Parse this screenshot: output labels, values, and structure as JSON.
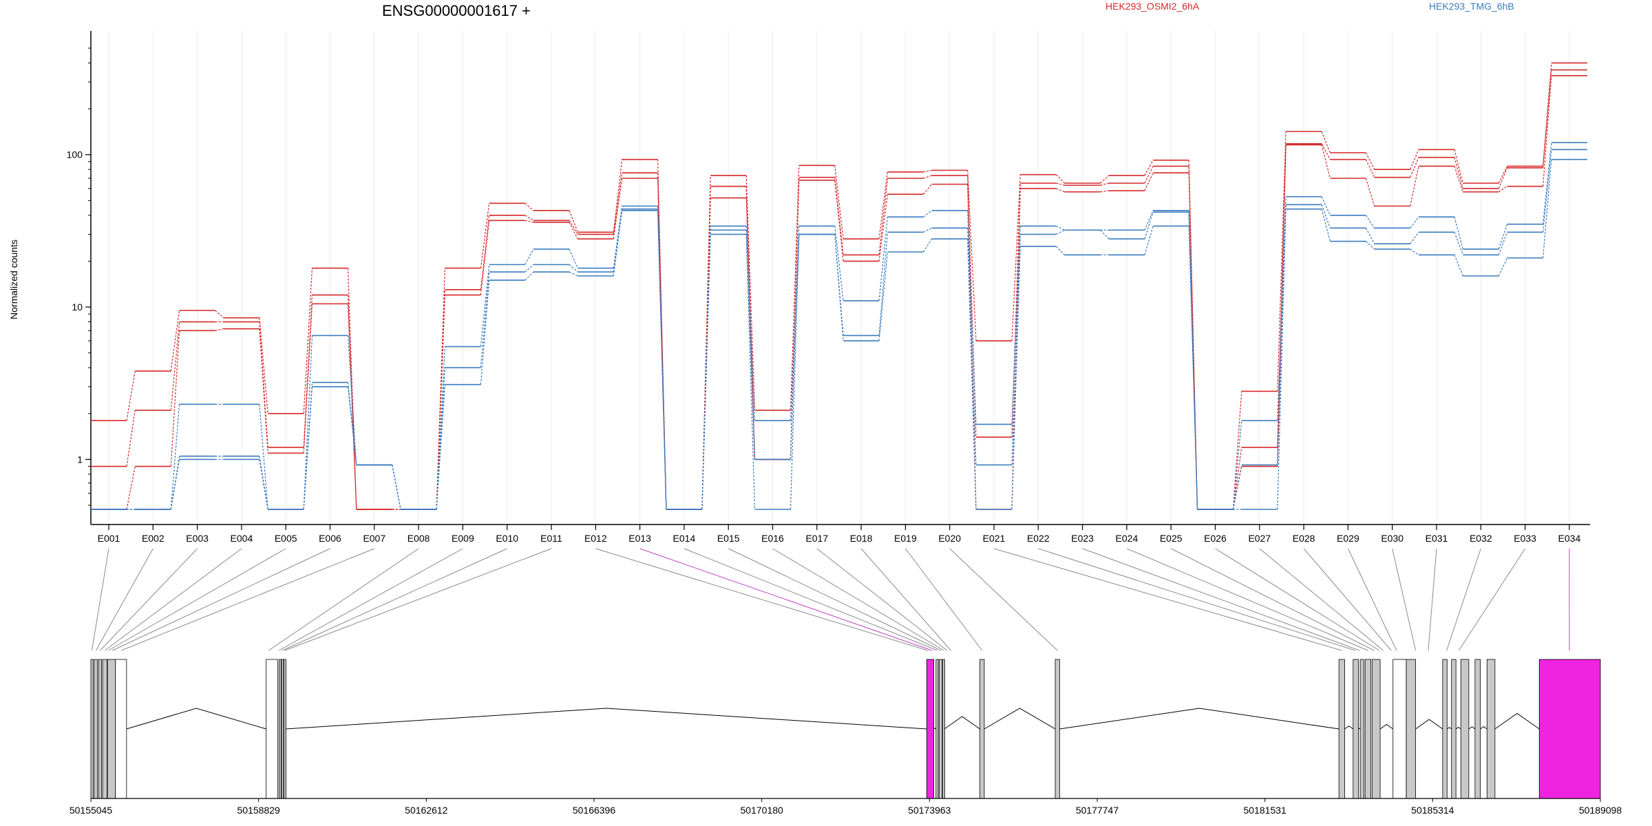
{
  "chart_data": {
    "type": "line",
    "title": "ENSG00000001617 +",
    "ylabel": "Normalized counts",
    "yscale": "log",
    "ylim": [
      0.47,
      500
    ],
    "yticks": [
      {
        "label": "1",
        "value": 1
      },
      {
        "label": "10",
        "value": 10
      },
      {
        "label": "100",
        "value": 100
      }
    ],
    "categories": [
      "E001",
      "E002",
      "E003",
      "E004",
      "E005",
      "E006",
      "E007",
      "E008",
      "E009",
      "E010",
      "E011",
      "E012",
      "E013",
      "E014",
      "E015",
      "E016",
      "E017",
      "E018",
      "E019",
      "E020",
      "E021",
      "E022",
      "E023",
      "E024",
      "E025",
      "E026",
      "E027",
      "E028",
      "E029",
      "E030",
      "E031",
      "E032",
      "E033",
      "E034"
    ],
    "legend_position": "top",
    "series": [
      {
        "name": "HEK293_OSMI2_6hA",
        "group": "osmi",
        "color": "#d62728",
        "values": [
          1.8,
          3.8,
          9.5,
          8.5,
          2.0,
          18,
          0.47,
          0.47,
          18,
          48,
          43,
          31,
          93,
          0.47,
          73,
          2.1,
          85,
          28,
          77,
          79,
          6.0,
          74,
          65,
          73,
          92,
          0.47,
          2.8,
          142,
          103,
          80,
          108,
          65,
          84,
          400
        ]
      },
      {
        "name": "",
        "group": "osmi",
        "color": "#d62728",
        "values": [
          0.9,
          2.1,
          8.0,
          8.0,
          1.2,
          12,
          0.47,
          0.47,
          13,
          40,
          37,
          30,
          76,
          0.47,
          62,
          1.0,
          71,
          22,
          70,
          73,
          1.4,
          65,
          63,
          65,
          84,
          0.47,
          1.2,
          118,
          93,
          71,
          96,
          60,
          82,
          360
        ]
      },
      {
        "name": "",
        "group": "osmi",
        "color": "#d62728",
        "values": [
          0.47,
          0.9,
          7.0,
          7.2,
          1.1,
          10.5,
          0.47,
          0.47,
          12,
          37,
          36,
          28,
          70,
          0.47,
          52,
          1.0,
          68,
          20,
          55,
          64,
          0.47,
          60,
          57,
          58,
          76,
          0.47,
          0.9,
          116,
          70,
          46,
          84,
          57,
          62,
          330
        ]
      },
      {
        "name": "HEK293_TMG_6hB",
        "group": "tmg",
        "color": "#3a7bbf",
        "values": [
          0.47,
          0.47,
          2.3,
          2.3,
          0.47,
          6.5,
          0.92,
          0.47,
          5.5,
          19,
          24,
          18,
          46,
          0.47,
          34,
          1.8,
          34,
          11,
          39,
          43,
          1.7,
          34,
          32,
          32,
          43,
          0.47,
          1.8,
          53,
          40,
          33,
          39,
          24,
          35,
          120
        ]
      },
      {
        "name": "",
        "group": "tmg",
        "color": "#3a7bbf",
        "values": [
          0.47,
          0.47,
          1.05,
          1.05,
          0.47,
          3.2,
          0.92,
          0.47,
          4.0,
          17,
          19,
          17,
          44,
          0.47,
          32,
          1.0,
          30,
          6.5,
          31,
          33,
          0.92,
          30,
          32,
          28,
          42,
          0.47,
          0.92,
          47,
          33,
          26,
          31,
          22,
          31,
          108
        ]
      },
      {
        "name": "",
        "group": "tmg",
        "color": "#3a7bbf",
        "values": [
          0.47,
          0.47,
          1.0,
          1.0,
          0.47,
          3.0,
          0.92,
          0.47,
          3.1,
          15,
          17,
          16,
          43,
          0.47,
          30,
          0.47,
          30,
          6.0,
          23,
          28,
          0.47,
          25,
          22,
          22,
          34,
          0.47,
          0.47,
          44,
          27,
          24,
          22,
          16,
          21,
          93
        ]
      }
    ],
    "gene_model": {
      "axis_ticks": [
        "50155045",
        "50158829",
        "50162612",
        "50166396",
        "50170180",
        "50173963",
        "50177747",
        "50181531",
        "50185314",
        "50189098"
      ],
      "genomic_range": [
        50155045,
        50189098
      ],
      "exon_links": [
        {
          "label": "E001",
          "start": 50155045,
          "end": 50155090
        },
        {
          "label": "E002",
          "start": 50155130,
          "end": 50155190
        },
        {
          "label": "E003",
          "start": 50155230,
          "end": 50155280
        },
        {
          "label": "E004",
          "start": 50155320,
          "end": 50155400
        },
        {
          "label": "E005",
          "start": 50155420,
          "end": 50155460
        },
        {
          "label": "E006",
          "start": 50155500,
          "end": 50155560
        },
        {
          "label": "E007",
          "start": 50155610,
          "end": 50155850
        },
        {
          "label": "E008",
          "start": 50159010,
          "end": 50159100
        },
        {
          "label": "E009",
          "start": 50159260,
          "end": 50159310
        },
        {
          "label": "E010",
          "start": 50159345,
          "end": 50159380
        },
        {
          "label": "E011",
          "start": 50159400,
          "end": 50159440
        },
        {
          "label": "E012",
          "start": 50173910,
          "end": 50173935
        },
        {
          "label": "E013",
          "start": 50173940,
          "end": 50174100
        },
        {
          "label": "E014",
          "start": 50174120,
          "end": 50174160
        },
        {
          "label": "E015",
          "start": 50174200,
          "end": 50174250
        },
        {
          "label": "E016",
          "start": 50174270,
          "end": 50174310
        },
        {
          "label": "E017",
          "start": 50174330,
          "end": 50174390
        },
        {
          "label": "E018",
          "start": 50174410,
          "end": 50174480
        },
        {
          "label": "E019",
          "start": 50175100,
          "end": 50175200
        },
        {
          "label": "E020",
          "start": 50176800,
          "end": 50176900
        },
        {
          "label": "E021",
          "start": 50183200,
          "end": 50183330
        },
        {
          "label": "E022",
          "start": 50183530,
          "end": 50183600
        },
        {
          "label": "E023",
          "start": 50183640,
          "end": 50183690
        },
        {
          "label": "E024",
          "start": 50183810,
          "end": 50183900
        },
        {
          "label": "E025",
          "start": 50183960,
          "end": 50184030
        },
        {
          "label": "E026",
          "start": 50184090,
          "end": 50184130
        },
        {
          "label": "E027",
          "start": 50184170,
          "end": 50184230
        },
        {
          "label": "E028",
          "start": 50184330,
          "end": 50184430
        },
        {
          "label": "E029",
          "start": 50184460,
          "end": 50184540
        },
        {
          "label": "E030",
          "start": 50184780,
          "end": 50185080
        },
        {
          "label": "E031",
          "start": 50185110,
          "end": 50185320
        },
        {
          "label": "E032",
          "start": 50185580,
          "end": 50185680
        },
        {
          "label": "E033",
          "start": 50185820,
          "end": 50185990
        },
        {
          "label": "E034",
          "start": 50187700,
          "end": 50189098
        }
      ],
      "exon_blocks": [
        {
          "start": 50155045,
          "end": 50155095,
          "fill": "#c8c8c8"
        },
        {
          "start": 50155120,
          "end": 50155195,
          "fill": "#c8c8c8"
        },
        {
          "start": 50155220,
          "end": 50155285,
          "fill": "#c8c8c8"
        },
        {
          "start": 50155310,
          "end": 50155410,
          "fill": "#c8c8c8"
        },
        {
          "start": 50155420,
          "end": 50155600,
          "fill": "#c8c8c8"
        },
        {
          "start": 50155600,
          "end": 50155850,
          "fill": "#ffffff"
        },
        {
          "start": 50159000,
          "end": 50159260,
          "fill": "#ffffff"
        },
        {
          "start": 50159290,
          "end": 50159330,
          "fill": "#c8c8c8"
        },
        {
          "start": 50159345,
          "end": 50159380,
          "fill": "#c8c8c8"
        },
        {
          "start": 50159400,
          "end": 50159440,
          "fill": "#c8c8c8"
        },
        {
          "start": 50173900,
          "end": 50174060,
          "fill": "#f023e0"
        },
        {
          "start": 50174110,
          "end": 50174160,
          "fill": "#c8c8c8"
        },
        {
          "start": 50174180,
          "end": 50174250,
          "fill": "#c8c8c8"
        },
        {
          "start": 50174260,
          "end": 50174300,
          "fill": "#c8c8c8"
        },
        {
          "start": 50175100,
          "end": 50175200,
          "fill": "#c8c8c8"
        },
        {
          "start": 50176800,
          "end": 50176900,
          "fill": "#c8c8c8"
        },
        {
          "start": 50183200,
          "end": 50183330,
          "fill": "#c8c8c8"
        },
        {
          "start": 50183520,
          "end": 50183640,
          "fill": "#c8c8c8"
        },
        {
          "start": 50183680,
          "end": 50183760,
          "fill": "#c8c8c8"
        },
        {
          "start": 50183790,
          "end": 50183920,
          "fill": "#c8c8c8"
        },
        {
          "start": 50183950,
          "end": 50184130,
          "fill": "#c8c8c8"
        },
        {
          "start": 50184420,
          "end": 50184720,
          "fill": "#ffffff"
        },
        {
          "start": 50184720,
          "end": 50184930,
          "fill": "#c8c8c8"
        },
        {
          "start": 50185540,
          "end": 50185640,
          "fill": "#c8c8c8"
        },
        {
          "start": 50185740,
          "end": 50185840,
          "fill": "#c8c8c8"
        },
        {
          "start": 50185950,
          "end": 50186130,
          "fill": "#c8c8c8"
        },
        {
          "start": 50186270,
          "end": 50186390,
          "fill": "#c8c8c8"
        },
        {
          "start": 50186540,
          "end": 50186720,
          "fill": "#c8c8c8"
        },
        {
          "start": 50187720,
          "end": 50189098,
          "fill": "#f023e0"
        }
      ],
      "highlight_color": "#c040c8"
    }
  }
}
